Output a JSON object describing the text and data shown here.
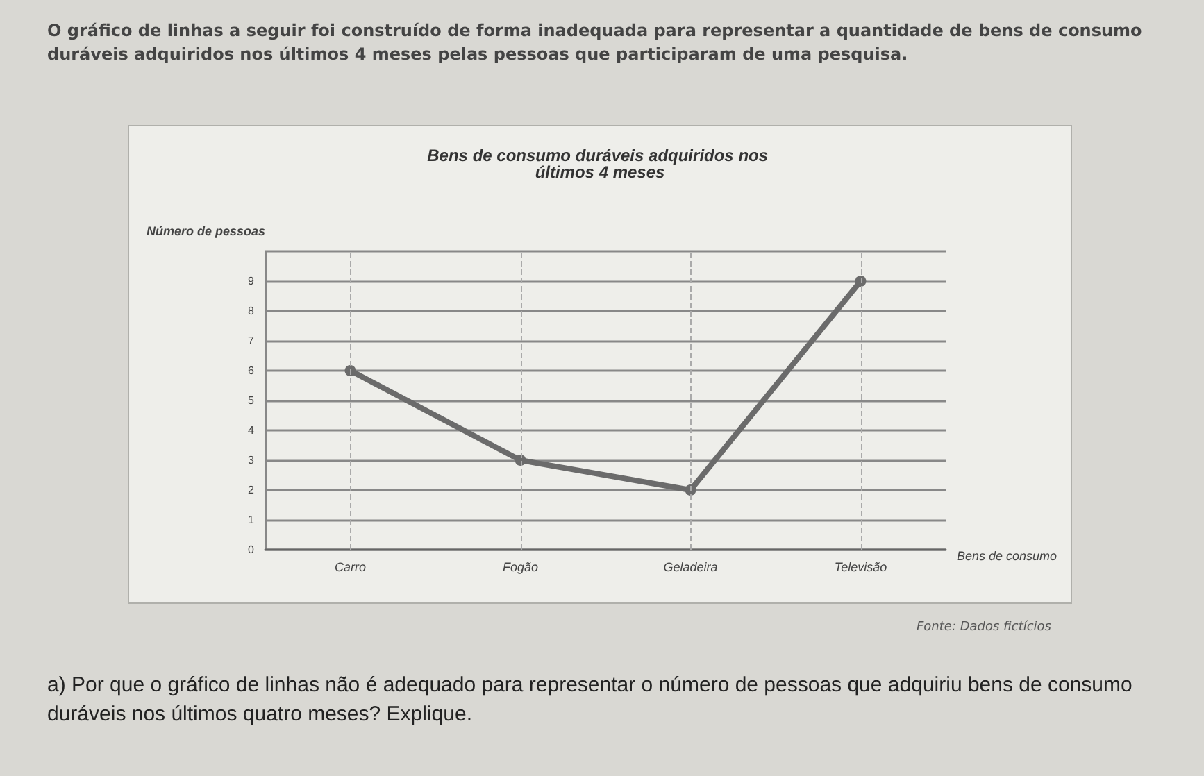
{
  "chart_data": {
    "type": "line",
    "title": "Bens de consumo duráveis adquiridos nos últimos 4 meses",
    "xlabel": "Bens de consumo",
    "ylabel": "Número de pessoas",
    "categories": [
      "Carro",
      "Fogão",
      "Geladeira",
      "Televisão"
    ],
    "series": [
      {
        "color": "#6b6b6b",
        "values": [
          6,
          3,
          2,
          9
        ]
      }
    ],
    "ylim": [
      0,
      10
    ],
    "yticks": [
      0,
      1,
      2,
      3,
      4,
      5,
      6,
      7,
      8,
      9,
      {
        "value": 10,
        "label": null
      }
    ],
    "grid": true,
    "marker": "circle",
    "line_style": "solid",
    "annotations": [
      "O gráfico de linhas a seguir foi construído de forma inadequada para representar a quantidade de bens de consumo duráveis adquiridos nos últimos 4 meses pelas pessoas que participaram de uma pesquisa.",
      "Fonte: Dados fictícios",
      "a) Por que o gráfico de linhas não é adequado para representar o número de pessoas que adquiriu bens de consumo duráveis nos últimos quatro meses? Explique."
    ]
  }
}
